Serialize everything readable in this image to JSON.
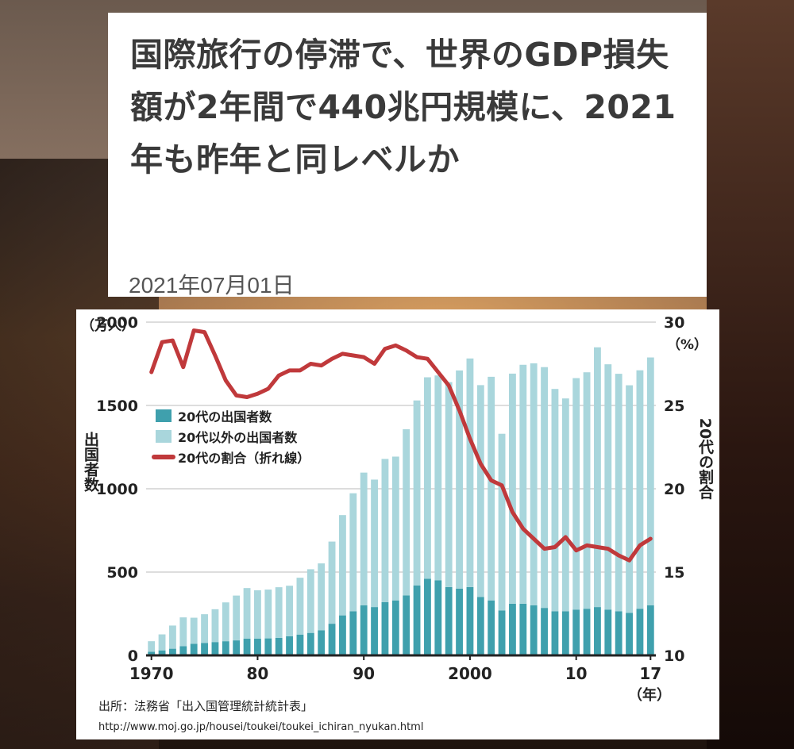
{
  "article": {
    "headline": "国際旅行の停滞で、世界のGDP損失額が2年間で440兆円規模に、2021年も昨年と同レベルか",
    "date": "2021年07月01日"
  },
  "chart_data": {
    "type": "bar",
    "years": [
      1970,
      1971,
      1972,
      1973,
      1974,
      1975,
      1976,
      1977,
      1978,
      1979,
      1980,
      1981,
      1982,
      1983,
      1984,
      1985,
      1986,
      1987,
      1988,
      1989,
      1990,
      1991,
      1992,
      1993,
      1994,
      1995,
      1996,
      1997,
      1998,
      1999,
      2000,
      2001,
      2002,
      2003,
      2004,
      2005,
      2006,
      2007,
      2008,
      2009,
      2010,
      2011,
      2012,
      2013,
      2014,
      2015,
      2016,
      2017
    ],
    "series": [
      {
        "name": "20代の出国者数",
        "color": "#3fa0ad",
        "values": [
          22,
          30,
          40,
          55,
          70,
          75,
          80,
          85,
          90,
          100,
          100,
          102,
          105,
          115,
          125,
          135,
          150,
          190,
          240,
          265,
          300,
          290,
          320,
          330,
          360,
          420,
          460,
          450,
          410,
          400,
          410,
          350,
          330,
          270,
          310,
          310,
          300,
          285,
          265,
          265,
          275,
          280,
          290,
          275,
          265,
          255,
          280,
          300
        ]
      },
      {
        "name": "20代以外の出国者数",
        "color": "#a9d6dc",
        "values": [
          63,
          96,
          139,
          173,
          156,
          172,
          197,
          233,
          269,
          304,
          291,
          293,
          304,
          303,
          341,
          382,
          402,
          493,
          602,
          708,
          797,
          765,
          859,
          863,
          997,
          1110,
          1209,
          1230,
          1230,
          1310,
          1372,
          1272,
          1342,
          1060,
          1381,
          1434,
          1453,
          1445,
          1334,
          1277,
          1389,
          1419,
          1559,
          1472,
          1425,
          1366,
          1431,
          1488
        ]
      },
      {
        "name": "20代の割合（折れ線）",
        "color": "#c0393b",
        "axis": "right",
        "values": [
          27.0,
          28.8,
          28.9,
          27.3,
          29.5,
          29.4,
          28.0,
          26.5,
          25.6,
          25.5,
          25.7,
          26.0,
          26.8,
          27.1,
          27.1,
          27.5,
          27.4,
          27.8,
          28.1,
          28.0,
          27.9,
          27.5,
          28.4,
          28.6,
          28.3,
          27.9,
          27.8,
          27.0,
          26.2,
          24.7,
          23.0,
          21.5,
          20.5,
          20.2,
          18.6,
          17.6,
          17.0,
          16.4,
          16.5,
          17.1,
          16.3,
          16.6,
          16.5,
          16.4,
          16.0,
          15.7,
          16.6,
          17.0
        ]
      }
    ],
    "y_left": {
      "label": "出国者数",
      "unit": "（万人）",
      "ylim": [
        0,
        2000
      ],
      "ticks": [
        0,
        500,
        1000,
        1500,
        2000
      ]
    },
    "y_right": {
      "label": "20代の割合",
      "unit": "（%）",
      "ylim": [
        10,
        30
      ],
      "ticks": [
        10,
        15,
        20,
        25,
        30
      ]
    },
    "x_ticks": [
      {
        "year": 1970,
        "label": "1970"
      },
      {
        "year": 1980,
        "label": "80"
      },
      {
        "year": 1990,
        "label": "90"
      },
      {
        "year": 2000,
        "label": "2000"
      },
      {
        "year": 2010,
        "label": "10"
      },
      {
        "year": 2017,
        "label": "17"
      }
    ],
    "x_unit": "（年）",
    "legend": {
      "position": "upper-left",
      "items": [
        "20代の出国者数",
        "20代以外の出国者数",
        "20代の割合（折れ線）"
      ]
    },
    "source": "出所：法務省「出入国管理統計統計表」",
    "url": "http://www.moj.go.jp/housei/toukei/toukei_ichiran_nyukan.html"
  }
}
